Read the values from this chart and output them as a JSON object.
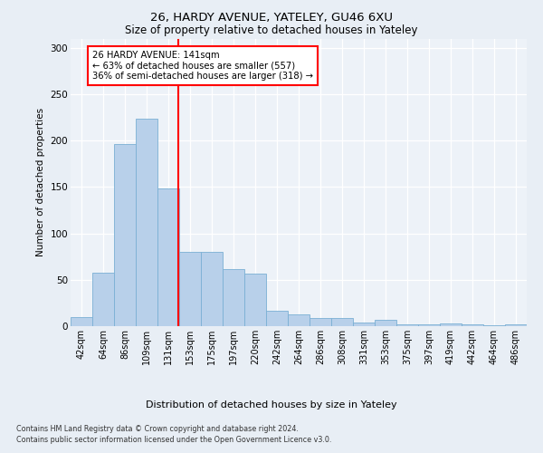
{
  "title1": "26, HARDY AVENUE, YATELEY, GU46 6XU",
  "title2": "Size of property relative to detached houses in Yateley",
  "xlabel": "Distribution of detached houses by size in Yateley",
  "ylabel": "Number of detached properties",
  "categories": [
    "42sqm",
    "64sqm",
    "86sqm",
    "109sqm",
    "131sqm",
    "153sqm",
    "175sqm",
    "197sqm",
    "220sqm",
    "242sqm",
    "264sqm",
    "286sqm",
    "308sqm",
    "331sqm",
    "353sqm",
    "375sqm",
    "397sqm",
    "419sqm",
    "442sqm",
    "464sqm",
    "486sqm"
  ],
  "values": [
    10,
    58,
    196,
    224,
    148,
    80,
    80,
    62,
    57,
    17,
    13,
    9,
    9,
    4,
    7,
    2,
    2,
    3,
    2,
    1,
    2
  ],
  "bar_color": "#b8d0ea",
  "bar_edge_color": "#7aafd4",
  "vline_color": "red",
  "annotation_text": "26 HARDY AVENUE: 141sqm\n← 63% of detached houses are smaller (557)\n36% of semi-detached houses are larger (318) →",
  "annotation_box_color": "white",
  "annotation_box_edge": "red",
  "ylim": [
    0,
    310
  ],
  "yticks": [
    0,
    50,
    100,
    150,
    200,
    250,
    300
  ],
  "footer1": "Contains HM Land Registry data © Crown copyright and database right 2024.",
  "footer2": "Contains public sector information licensed under the Open Government Licence v3.0.",
  "bg_color": "#e8eef5",
  "plot_bg_color": "#edf2f8"
}
